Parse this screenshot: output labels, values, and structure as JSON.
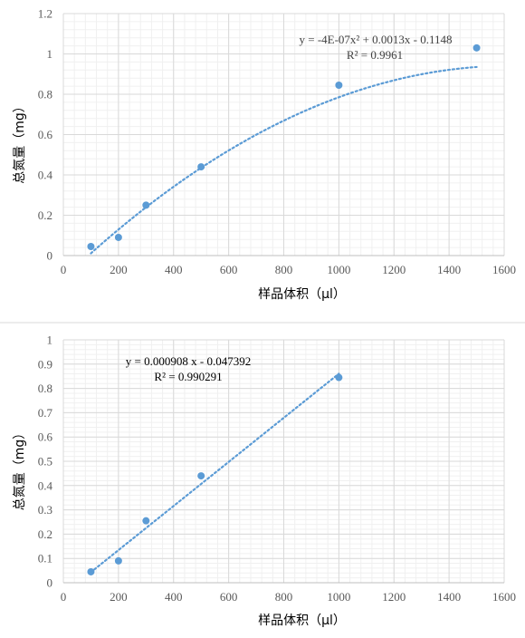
{
  "chart_data": [
    {
      "type": "scatter",
      "xlabel": "样品体积（μl）",
      "ylabel": "总氮量（mg）",
      "xlim": [
        0,
        1600
      ],
      "ylim": [
        0,
        1.2
      ],
      "xticks": [
        0,
        200,
        400,
        600,
        800,
        1000,
        1200,
        1400,
        1600
      ],
      "xtick_labels": [
        "0",
        "200",
        "400",
        "600",
        "800",
        "1000",
        "1200",
        "1400",
        "1600"
      ],
      "yticks": [
        0,
        0.2,
        0.4,
        0.6,
        0.8,
        1,
        1.2
      ],
      "ytick_labels": [
        "0",
        "0.2",
        "0.4",
        "0.6",
        "0.8",
        "1",
        "1.2"
      ],
      "grid": true,
      "series": [
        {
          "x": [
            100,
            200,
            300,
            500,
            1000,
            1500
          ],
          "y": [
            0.045,
            0.09,
            0.25,
            0.44,
            0.845,
            1.03
          ],
          "color": "#5b9bd5"
        }
      ],
      "trendline": {
        "type": "polynomial",
        "coefficients": [
          -4e-07,
          0.0013,
          -0.1148
        ],
        "x_range": [
          100,
          1500
        ],
        "color": "#5b9bd5",
        "equation": "y = -4E-07x² + 0.0013x - 0.1148",
        "r2": "R² = 0.9961"
      }
    },
    {
      "type": "scatter",
      "xlabel": "样品体积（μl）",
      "ylabel": "总氮量（mg）",
      "xlim": [
        0,
        1600
      ],
      "ylim": [
        0,
        1
      ],
      "xticks": [
        0,
        200,
        400,
        600,
        800,
        1000,
        1200,
        1400,
        1600
      ],
      "xtick_labels": [
        "0",
        "200",
        "400",
        "600",
        "800",
        "1000",
        "1200",
        "1400",
        "1600"
      ],
      "yticks": [
        0,
        0.1,
        0.2,
        0.3,
        0.4,
        0.5,
        0.6,
        0.7,
        0.8,
        0.9,
        1
      ],
      "ytick_labels": [
        "0",
        "0.1",
        "0.2",
        "0.3",
        "0.4",
        "0.5",
        "0.6",
        "0.7",
        "0.8",
        "0.9",
        "1"
      ],
      "grid": true,
      "series": [
        {
          "x": [
            100,
            200,
            300,
            500,
            1000
          ],
          "y": [
            0.045,
            0.09,
            0.255,
            0.44,
            0.845
          ],
          "color": "#5b9bd5"
        }
      ],
      "trendline": {
        "type": "linear",
        "coefficients": [
          0.000908,
          -0.047392
        ],
        "x_range": [
          100,
          1000
        ],
        "color": "#5b9bd5",
        "equation": "y = 0.000908 x - 0.047392",
        "r2": "R² = 0.990291"
      }
    }
  ]
}
